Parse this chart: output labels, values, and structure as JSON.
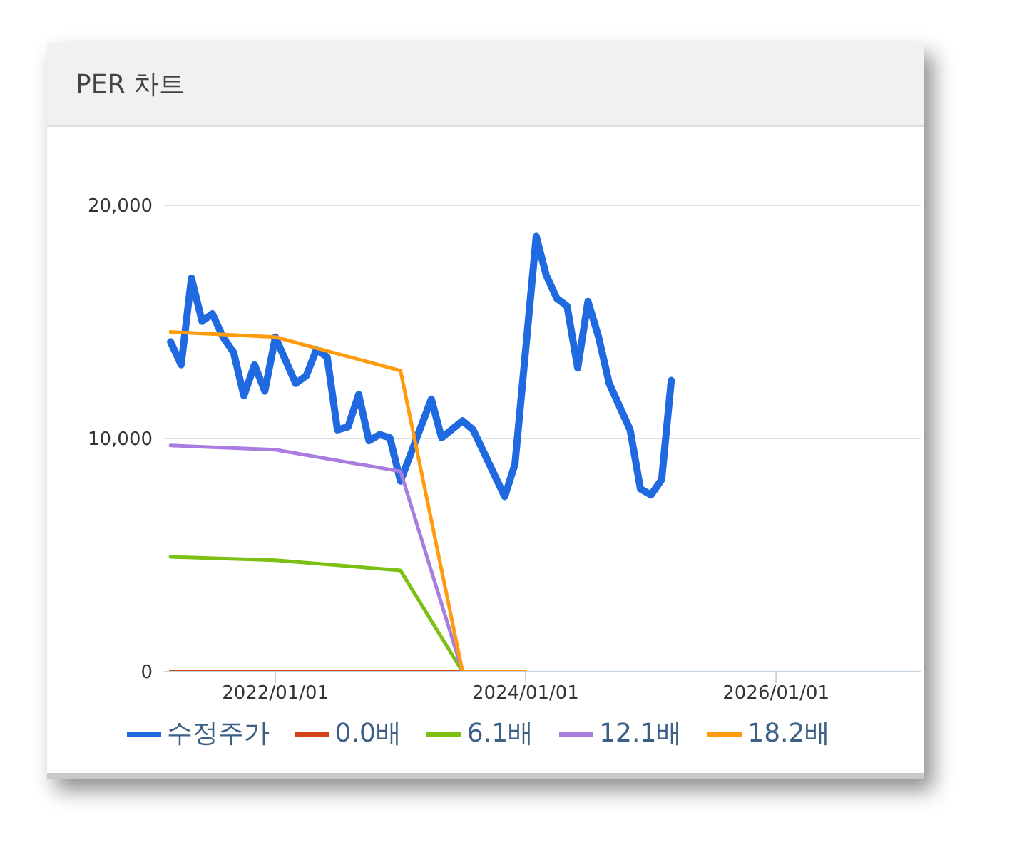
{
  "chart_data": {
    "type": "line",
    "title": "PER 차트",
    "xlim": [
      "2021-02-10",
      "2027-03-01"
    ],
    "xticks": [
      {
        "value": "2022-01-01",
        "label": "2022/01/01"
      },
      {
        "value": "2024-01-01",
        "label": "2024/01/01"
      },
      {
        "value": "2026-01-01",
        "label": "2026/01/01"
      }
    ],
    "ylim": [
      0,
      20000
    ],
    "yticks": [
      {
        "value": 0,
        "label": "0"
      },
      {
        "value": 10000,
        "label": "10,000"
      },
      {
        "value": 20000,
        "label": "20,000"
      }
    ],
    "grid": "y",
    "legend": "bottom",
    "marker": "none",
    "line_style": "solid",
    "series": [
      {
        "name": "수정주가",
        "color": "#1f6ae0",
        "x": [
          "2021-03",
          "2021-04",
          "2021-05",
          "2021-06",
          "2021-07",
          "2021-08",
          "2021-09",
          "2021-10",
          "2021-11",
          "2021-12",
          "2022-01",
          "2022-03",
          "2022-04",
          "2022-05",
          "2022-06",
          "2022-07",
          "2022-08",
          "2022-09",
          "2022-10",
          "2022-11",
          "2022-12",
          "2023-01",
          "2023-04",
          "2023-05",
          "2023-07",
          "2023-08",
          "2023-11",
          "2023-12",
          "2024-02",
          "2024-03",
          "2024-04",
          "2024-05",
          "2024-06",
          "2024-07",
          "2024-08",
          "2024-09",
          "2024-11",
          "2024-12",
          "2025-01",
          "2025-02",
          "2025-03"
        ],
        "values": [
          14150,
          13160,
          16880,
          15020,
          15350,
          14350,
          13690,
          11830,
          13160,
          12030,
          14350,
          12360,
          12690,
          13820,
          13490,
          10370,
          10500,
          11890,
          9900,
          10170,
          10030,
          8170,
          11690,
          10030,
          10760,
          10370,
          7510,
          8900,
          18670,
          17010,
          16010,
          15680,
          13020,
          15880,
          14350,
          12360,
          10370,
          7840,
          7580,
          8240,
          12490
        ]
      },
      {
        "name": "0.0배",
        "color": "#d4421c",
        "x": [
          "2021-03",
          "2022-01",
          "2023-01",
          "2023-07"
        ],
        "values": [
          0,
          0,
          0,
          0
        ]
      },
      {
        "name": "6.1배",
        "color": "#7cc014",
        "x": [
          "2021-03",
          "2022-01",
          "2023-01",
          "2023-07"
        ],
        "values": [
          4920,
          4780,
          4340,
          0
        ]
      },
      {
        "name": "12.1배",
        "color": "#a97ddf",
        "x": [
          "2021-03",
          "2022-01",
          "2023-01",
          "2023-07"
        ],
        "values": [
          9700,
          9520,
          8590,
          0
        ]
      },
      {
        "name": "18.2배",
        "color": "#ff9b0c",
        "x": [
          "2021-03",
          "2022-01",
          "2023-01",
          "2023-07",
          "2024-01"
        ],
        "values": [
          14570,
          14350,
          12910,
          0,
          0
        ]
      }
    ]
  }
}
